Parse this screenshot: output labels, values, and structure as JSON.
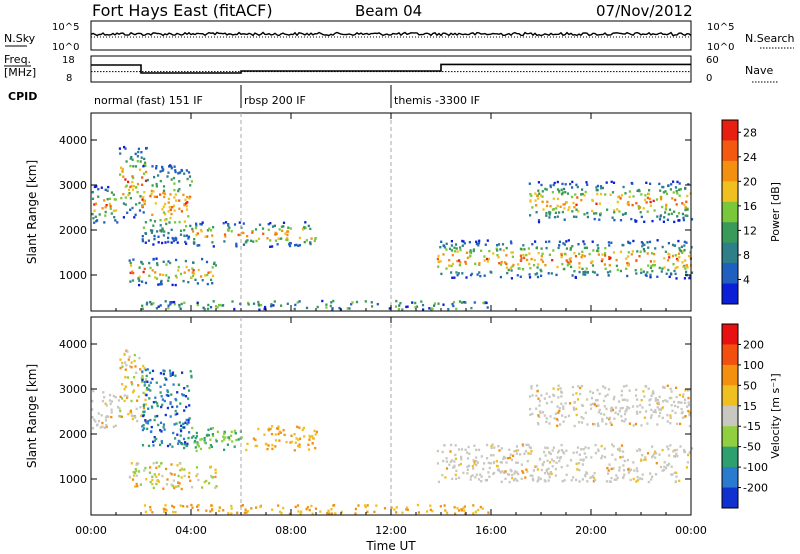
{
  "header": {
    "title": "Fort Hays East (fitACF)",
    "beam": "Beam 04",
    "date": "07/Nov/2012"
  },
  "noise_panel": {
    "left_label": "N.Sky",
    "right_label": "N.Search",
    "left_ticks": [
      "10^5",
      "10^0"
    ],
    "right_ticks": [
      "10^5",
      "10^0"
    ]
  },
  "freq_panel": {
    "left_label_line1": "Freq.",
    "left_label_line2": "[MHz]",
    "right_label": "Nave",
    "left_ticks": [
      "18",
      "8"
    ],
    "right_ticks": [
      "60",
      "0"
    ],
    "freq_steps": [
      {
        "t0": 0,
        "t1": 2.0,
        "mhz": 14.5
      },
      {
        "t0": 2.0,
        "t1": 6.0,
        "mhz": 10.5
      },
      {
        "t0": 6.0,
        "t1": 14.0,
        "mhz": 11.5
      },
      {
        "t0": 14.0,
        "t1": 24.0,
        "mhz": 14.8
      }
    ],
    "nave_level": 11.2
  },
  "cpid": {
    "label": "CPID",
    "segments": [
      {
        "start_hour": 0,
        "end_hour": 6,
        "label": "normal (fast) 151 IF"
      },
      {
        "start_hour": 6,
        "end_hour": 12,
        "label": "rbsp 200 IF"
      },
      {
        "start_hour": 12,
        "end_hour": 24,
        "label": "themis -3300 IF"
      }
    ]
  },
  "chart_data": {
    "type": "heatmap",
    "xlabel": "Time UT",
    "x_range_hours": [
      0,
      24
    ],
    "x_ticks": [
      "00:00",
      "04:00",
      "08:00",
      "12:00",
      "16:00",
      "20:00",
      "00:00"
    ],
    "ylabel": "Slant Range [km]",
    "y_range_km": [
      200,
      4600
    ],
    "y_ticks": [
      1000,
      2000,
      3000,
      4000
    ],
    "mode_boundaries_hours": [
      6,
      12
    ],
    "power_panel": {
      "colorbar_label": "Power [dB]",
      "colorbar_ticks": [
        4,
        8,
        12,
        16,
        20,
        24,
        28
      ],
      "colorbar_range": [
        0,
        30
      ],
      "colors": [
        "#0a1fd6",
        "#1f5fc0",
        "#2f7f88",
        "#3a9a5a",
        "#7ac83a",
        "#f0c020",
        "#f39010",
        "#f35a10",
        "#e81f10"
      ]
    },
    "velocity_panel": {
      "colorbar_label": "Velocity [m s⁻¹]",
      "colorbar_ticks": [
        "200",
        "100",
        "50",
        "15",
        "-15",
        "-50",
        "-100",
        "-200"
      ],
      "colors": [
        "#1030d0",
        "#2a7ad0",
        "#2ea070",
        "#90d040",
        "#c8c8c0",
        "#f0c020",
        "#f39010",
        "#f35010",
        "#e81010"
      ]
    },
    "echo_regions": [
      {
        "name": "early-range-band",
        "t0": 0.0,
        "t1": 1.1,
        "r_lo": 2150,
        "r_hi": 3000
      },
      {
        "name": "rising-arc",
        "t0": 1.1,
        "t1": 2.2,
        "r_lo": 2300,
        "r_hi": 3900
      },
      {
        "name": "descending-arc",
        "t0": 2.0,
        "t1": 4.0,
        "r_lo": 1700,
        "r_hi": 3500
      },
      {
        "name": "morning-band",
        "t0": 4.0,
        "t1": 9.0,
        "r_lo": 1650,
        "r_hi": 2200
      },
      {
        "name": "near-range-patch",
        "t0": 1.5,
        "t1": 5.0,
        "r_lo": 800,
        "r_hi": 1400
      },
      {
        "name": "ground-scatter-floor",
        "t0": 2.0,
        "t1": 16.0,
        "r_lo": 250,
        "r_hi": 450
      },
      {
        "name": "evening-main-band",
        "t0": 13.8,
        "t1": 24.0,
        "r_lo": 950,
        "r_hi": 1800
      },
      {
        "name": "evening-upper-band",
        "t0": 17.5,
        "t1": 24.0,
        "r_lo": 2200,
        "r_hi": 3100
      }
    ]
  }
}
